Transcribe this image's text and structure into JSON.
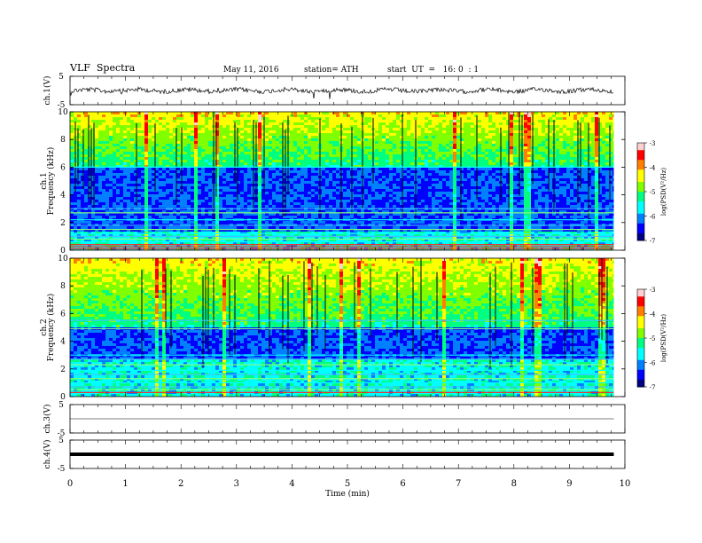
{
  "header": {
    "title": "VLF  Spectra",
    "date": "May 11, 2016",
    "station": "station= ATH",
    "start": "start  UT  =   16: 0  : 1"
  },
  "chart_data": [
    {
      "type": "line",
      "name": "ch1-waveform",
      "ylabel": "ch.1(V)",
      "ylim": [
        -5,
        5
      ],
      "yticks": [
        "5",
        "-5"
      ],
      "xlim": [
        0,
        10
      ],
      "x_end": 9.8,
      "baseline": 0
    },
    {
      "type": "heatmap",
      "name": "ch1-spectrogram",
      "ylabel_channel": "ch.1",
      "ylabel": "Frequency  (kHz)",
      "ylim": [
        0,
        10
      ],
      "yticks": [
        "0",
        "2",
        "4",
        "6",
        "8",
        "10"
      ],
      "xlim": [
        0,
        10
      ],
      "x_end": 9.8,
      "colorbar": {
        "label": "log(PSD(V²/Hz)",
        "ticks": [
          "-3",
          "-4",
          "-5",
          "-6",
          "-7"
        ],
        "range": [
          -7,
          -3
        ]
      },
      "narrowband_lines_khz": [
        0.1,
        0.25,
        0.4,
        0.6,
        0.8,
        1.0,
        1.2,
        1.5,
        1.8,
        2.2,
        2.7,
        3.0,
        6.0
      ],
      "quiet_band_khz": [
        1.5,
        6.0
      ]
    },
    {
      "type": "heatmap",
      "name": "ch2-spectrogram",
      "ylabel_channel": "ch.2",
      "ylabel": "Frequency  (kHz)",
      "ylim": [
        0,
        10
      ],
      "yticks": [
        "0",
        "2",
        "4",
        "6",
        "8",
        "10"
      ],
      "xlim": [
        0,
        10
      ],
      "x_end": 9.8,
      "colorbar": {
        "label": "log(PSD(V²/Hz)",
        "ticks": [
          "-3",
          "-4",
          "-5",
          "-6",
          "-7"
        ],
        "range": [
          -7,
          -3
        ]
      },
      "narrowband_lines_khz": [
        0.3,
        0.5,
        0.7,
        1.0,
        1.3,
        1.6,
        1.9,
        2.3,
        2.7,
        3.0,
        4.9,
        5.5
      ],
      "quiet_band_khz": [
        2.8,
        5.0
      ]
    },
    {
      "type": "line",
      "name": "ch3-waveform",
      "ylabel": "ch.3(V)",
      "ylim": [
        -5,
        5
      ],
      "yticks": [
        "5",
        "-5"
      ],
      "xlim": [
        0,
        10
      ],
      "x_end": 9.8,
      "baseline": 0
    },
    {
      "type": "line",
      "name": "ch4-waveform",
      "ylabel": "ch.4(V)",
      "ylim": [
        -5,
        5
      ],
      "yticks": [
        "5",
        "-5"
      ],
      "xlim": [
        0,
        10
      ],
      "x_end": 9.8,
      "baseline": 0
    }
  ],
  "xaxis": {
    "label": "Time  (min)",
    "ticks": [
      "0",
      "1",
      "2",
      "3",
      "4",
      "5",
      "6",
      "7",
      "8",
      "9",
      "10"
    ],
    "range": [
      0,
      10
    ]
  },
  "colors": {
    "colormap": [
      "#000080",
      "#0000ff",
      "#0080ff",
      "#00ffff",
      "#00ff80",
      "#80ff00",
      "#ffff00",
      "#ff8000",
      "#ff0000",
      "#ffd0d0"
    ]
  }
}
